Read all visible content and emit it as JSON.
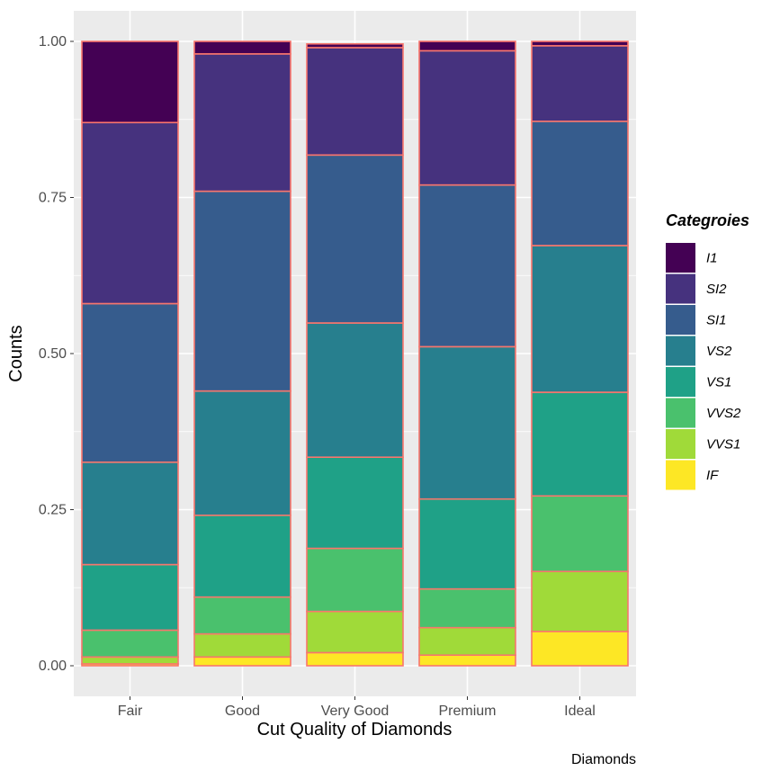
{
  "chart_data": {
    "type": "bar",
    "stacked": true,
    "normalized": true,
    "categories": [
      "Fair",
      "Good",
      "Very Good",
      "Premium",
      "Ideal"
    ],
    "series": [
      {
        "name": "I1",
        "color": "#440154",
        "values": [
          0.13,
          0.02,
          0.006,
          0.015,
          0.007
        ]
      },
      {
        "name": "SI2",
        "color": "#46327E",
        "values": [
          0.29,
          0.22,
          0.172,
          0.215,
          0.121
        ]
      },
      {
        "name": "SI1",
        "color": "#365C8D",
        "values": [
          0.254,
          0.32,
          0.269,
          0.259,
          0.199
        ]
      },
      {
        "name": "VS2",
        "color": "#277F8E",
        "values": [
          0.164,
          0.199,
          0.215,
          0.244,
          0.235
        ]
      },
      {
        "name": "VS1",
        "color": "#1FA187",
        "values": [
          0.105,
          0.131,
          0.146,
          0.144,
          0.166
        ]
      },
      {
        "name": "VVS2",
        "color": "#4AC16D",
        "values": [
          0.043,
          0.059,
          0.101,
          0.062,
          0.121
        ]
      },
      {
        "name": "VVS1",
        "color": "#A0DA39",
        "values": [
          0.011,
          0.037,
          0.066,
          0.044,
          0.096
        ]
      },
      {
        "name": "IF",
        "color": "#FDE725",
        "values": [
          0.003,
          0.014,
          0.021,
          0.017,
          0.055
        ]
      }
    ],
    "bar_outline_color": "#F8766D",
    "panel_background": "#EBEBEB",
    "grid": true,
    "ylim": [
      0,
      1
    ],
    "yticks": [
      0,
      0.25,
      0.5,
      0.75,
      1
    ],
    "ytick_labels": [
      "0.00",
      "0.25",
      "0.50",
      "0.75",
      "1.00"
    ],
    "xlabel": "Cut Quality of Diamonds",
    "ylabel": "Counts",
    "caption": "Diamonds",
    "legend": {
      "title": "Categroies",
      "position": "right"
    }
  }
}
